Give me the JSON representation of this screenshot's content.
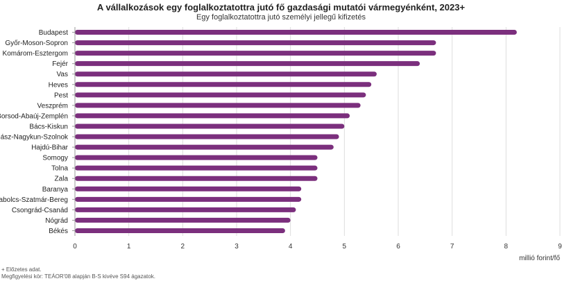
{
  "chart_data": {
    "type": "bar",
    "orientation": "horizontal",
    "title": "A vállalkozások egy foglalkoztatottra jutó fő gazdasági mutatói vármegyénként, 2023+",
    "subtitle": "Egy foglalkoztatottra jutó személyi jellegű kifizetés",
    "xlabel": "millió forint/fő",
    "xlim": [
      0,
      9
    ],
    "xticks": [
      "0",
      "1",
      "2",
      "3",
      "4",
      "5",
      "6",
      "7",
      "8",
      "9"
    ],
    "grid": true,
    "bar_color": "#7b2f7d",
    "categories": [
      "Budapest",
      "Győr-Moson-Sopron",
      "Komárom-Esztergom",
      "Fejér",
      "Vas",
      "Heves",
      "Pest",
      "Veszprém",
      "Borsod-Abaúj-Zemplén",
      "Bács-Kiskun",
      "Jász-Nagykun-Szolnok",
      "Hajdú-Bihar",
      "Somogy",
      "Tolna",
      "Zala",
      "Baranya",
      "Szabolcs-Szatmár-Bereg",
      "Csongrád-Csanád",
      "Nógrád",
      "Békés"
    ],
    "values": [
      8.2,
      6.7,
      6.7,
      6.4,
      5.6,
      5.5,
      5.4,
      5.3,
      5.1,
      5.0,
      4.9,
      4.8,
      4.5,
      4.5,
      4.5,
      4.2,
      4.2,
      4.1,
      4.0,
      3.9
    ]
  },
  "notes": {
    "preliminary": "+ Előzetes adat.",
    "scope": "Megfigyelési kör: TEÁOR'08 alapján B-S kivéve S94 ágazatok."
  }
}
